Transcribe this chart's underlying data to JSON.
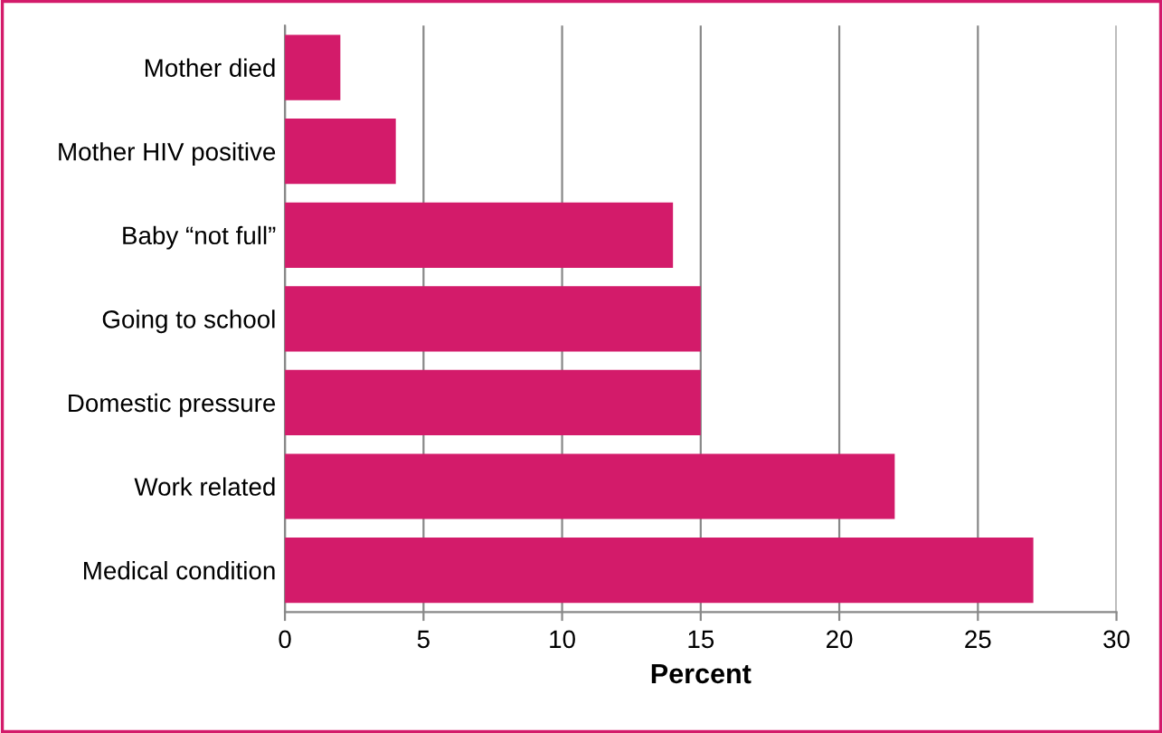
{
  "chart_data": {
    "type": "bar",
    "orientation": "horizontal",
    "xlabel": "Percent",
    "categories": [
      "Mother died",
      "Mother HIV positive",
      "Baby “not full”",
      "Going to school",
      "Domestic pressure",
      "Work related",
      "Medical condition"
    ],
    "values": [
      2,
      4,
      14,
      15,
      15,
      22,
      27
    ],
    "color": "#d31b6a",
    "xlim": [
      0,
      30
    ],
    "xticks": [
      0,
      5,
      10,
      15,
      20,
      25,
      30
    ],
    "grid": "x"
  }
}
